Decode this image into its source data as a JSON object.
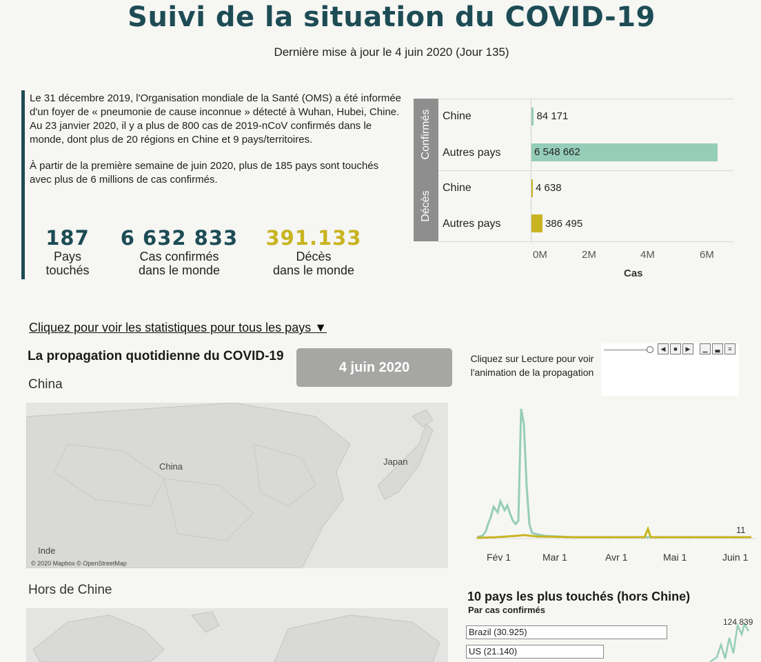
{
  "header": {
    "title": "Suivi de la situation du COVID-19",
    "subtitle": "Dernière mise à jour le 4 juin 2020 (Jour 135)"
  },
  "intro": {
    "paragraph1": "Le 31 décembre 2019, l'Organisation mondiale de la Santé (OMS) a été informée d'un foyer de « pneumonie de cause inconnue » détecté à Wuhan, Hubei, Chine. Au 23 janvier 2020, il y a plus de 800 cas de 2019-nCoV confirmés dans le monde, dont plus de 20 régions en Chine et 9 pays/territoires.",
    "paragraph2": "À partir de la première semaine de juin 2020, plus de 185 pays sont touchés avec plus de 6 millions de cas confirmés."
  },
  "kpis": {
    "countries": {
      "value": "187",
      "label1": "Pays",
      "label2": "touchés",
      "color": "#1d4c55"
    },
    "cases": {
      "value": "6 632 833",
      "label1": "Cas confirmés",
      "label2": "dans le monde",
      "color": "#1d4c55"
    },
    "deaths": {
      "value": "391.133",
      "label1": "Décès",
      "label2": "dans le monde",
      "color": "#c8b421"
    }
  },
  "bar_chart": {
    "groups": [
      "Confirmés",
      "Décès"
    ],
    "rows": [
      {
        "group": "Confirmés",
        "category": "Chine",
        "value": 84171,
        "label": "84 171",
        "color": "#95cdb9"
      },
      {
        "group": "Confirmés",
        "category": "Autres pays",
        "value": 6548662,
        "label": "6 548 662",
        "color": "#95cdb9"
      },
      {
        "group": "Décès",
        "category": "Chine",
        "value": 4638,
        "label": "4 638",
        "color": "#c8b421"
      },
      {
        "group": "Décès",
        "category": "Autres pays",
        "value": 386495,
        "label": "386 495",
        "color": "#c8b421"
      }
    ],
    "xticks": [
      "0M",
      "2M",
      "4M",
      "6M"
    ],
    "xmax": 6900000,
    "xlabel": "Cas"
  },
  "links": {
    "all_countries": "Cliquez pour voir les statistiques pour tous les pays ▼"
  },
  "spread": {
    "title": "La propagation quotidienne du COVID-19",
    "date_button": "4 juin 2020",
    "play_hint": "Cliquez sur Lecture pour voir l'animation de la propagation",
    "region_china": "China",
    "region_outside": "Hors de Chine"
  },
  "map_china": {
    "labels": {
      "china": "China",
      "japan": "Japan",
      "india": "Inde"
    },
    "credit": "© 2020 Mapbox © OpenStreetMap"
  },
  "line_chart": {
    "xticks": [
      "Fév 1",
      "Mar 1",
      "Avr 1",
      "Mai 1",
      "Juin 1"
    ],
    "end_label": "11",
    "colors": {
      "cases": "#95cdb9",
      "deaths": "#c8b421"
    }
  },
  "top10": {
    "title": "10 pays les plus touchés (hors Chine)",
    "subtitle": "Par cas confirmés",
    "rows": [
      {
        "label": "Brazil (30.925)",
        "value": 30925
      },
      {
        "label": "US (21.140)",
        "value": 21140
      }
    ],
    "sparkline_label": "124 839"
  }
}
